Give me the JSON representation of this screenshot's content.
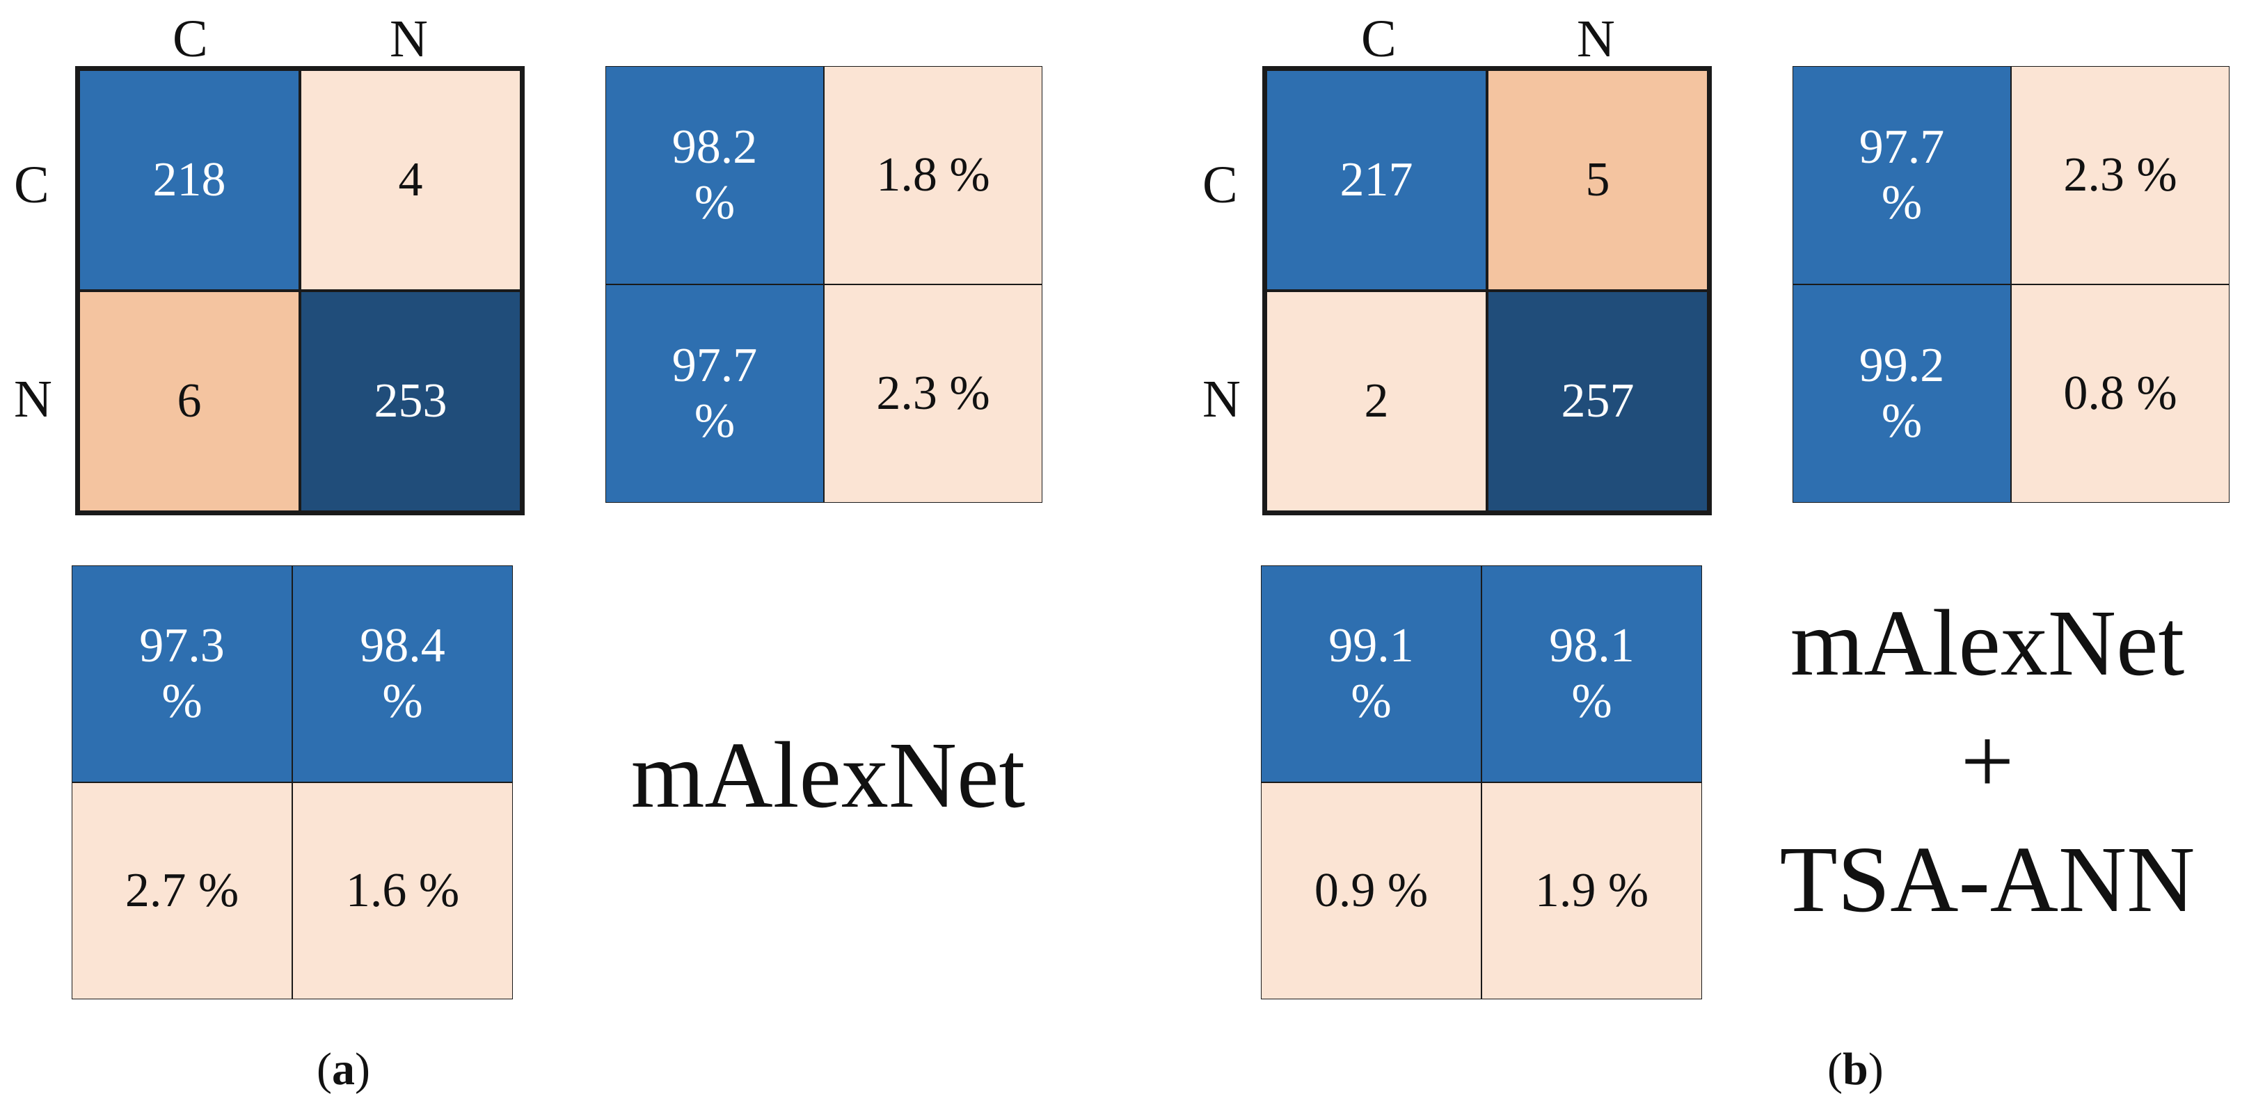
{
  "colors": {
    "dark_blue": "#204d7a",
    "mid_blue": "#2e6fb0",
    "peach": "#f4c4a0",
    "light_peach": "#fbe4d4",
    "white_text": "#ffffff",
    "dark_text": "#111111"
  },
  "panels": [
    {
      "label_open": "(",
      "label_letter": "a",
      "label_close": ")",
      "model_name": "mAlexNet",
      "col_labels": [
        "C",
        "N"
      ],
      "row_labels": [
        "C",
        "N"
      ],
      "matrix": [
        [
          {
            "text": "218",
            "color": "mid_blue"
          },
          {
            "text": "4",
            "color": "light_peach"
          }
        ],
        [
          {
            "text": "6",
            "color": "peach"
          },
          {
            "text": "253",
            "color": "dark_blue"
          }
        ]
      ],
      "row_percent": [
        [
          {
            "text": "98.2\n%",
            "color": "mid_blue"
          },
          {
            "text": "1.8  %",
            "color": "light_peach"
          }
        ],
        [
          {
            "text": "97.7\n%",
            "color": "mid_blue"
          },
          {
            "text": "2.3 %",
            "color": "light_peach"
          }
        ]
      ],
      "col_percent": [
        [
          {
            "text": "97.3\n%",
            "color": "mid_blue"
          },
          {
            "text": "98.4\n%",
            "color": "mid_blue"
          }
        ],
        [
          {
            "text": "2.7 %",
            "color": "light_peach"
          },
          {
            "text": "1.6 %",
            "color": "light_peach"
          }
        ]
      ]
    },
    {
      "label_open": "(",
      "label_letter": "b",
      "label_close": ")",
      "model_name": "mAlexNet\n+\nTSA-ANN",
      "col_labels": [
        "C",
        "N"
      ],
      "row_labels": [
        "C",
        "N"
      ],
      "matrix": [
        [
          {
            "text": "217",
            "color": "mid_blue"
          },
          {
            "text": "5",
            "color": "peach"
          }
        ],
        [
          {
            "text": "2",
            "color": "light_peach"
          },
          {
            "text": "257",
            "color": "dark_blue"
          }
        ]
      ],
      "row_percent": [
        [
          {
            "text": "97.7\n%",
            "color": "mid_blue"
          },
          {
            "text": "2.3  %",
            "color": "light_peach"
          }
        ],
        [
          {
            "text": "99.2\n%",
            "color": "mid_blue"
          },
          {
            "text": "0.8 %",
            "color": "light_peach"
          }
        ]
      ],
      "col_percent": [
        [
          {
            "text": "99.1\n%",
            "color": "mid_blue"
          },
          {
            "text": "98.1\n%",
            "color": "mid_blue"
          }
        ],
        [
          {
            "text": "0.9 %",
            "color": "light_peach"
          },
          {
            "text": "1.9 %",
            "color": "light_peach"
          }
        ]
      ]
    }
  ]
}
